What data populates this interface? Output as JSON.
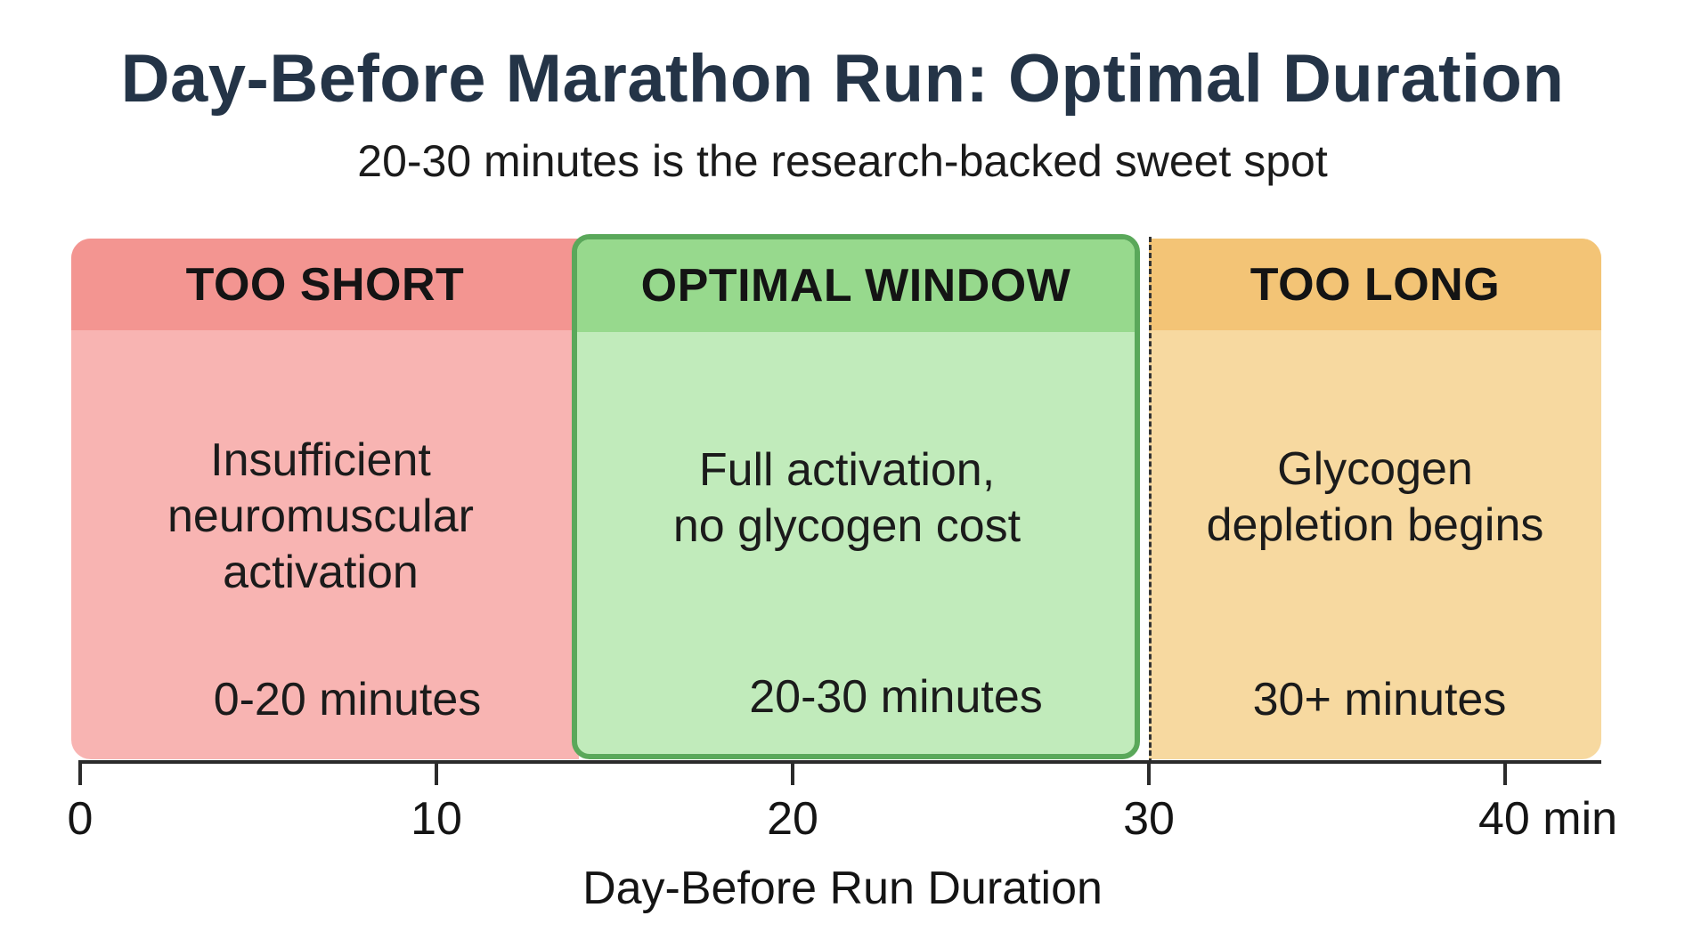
{
  "title": "Day-Before Marathon Run: Optimal Duration",
  "subtitle": "20-30 minutes is the research-backed sweet spot",
  "zones": [
    {
      "header": "TOO SHORT",
      "desc": [
        "Insufficient",
        "neuromuscular",
        "activation"
      ],
      "range": "0-20 minutes",
      "colors": {
        "header": "#f39591",
        "body": "#f8b4b2"
      }
    },
    {
      "header": "OPTIMAL WINDOW",
      "desc": [
        "Full activation,",
        "no glycogen cost"
      ],
      "range": "20-30 minutes",
      "colors": {
        "header": "#97d98d",
        "body": "#c1ebbb",
        "border": "#5aa85a"
      }
    },
    {
      "header": "TOO LONG",
      "desc": [
        "Glycogen",
        "depletion begins"
      ],
      "range": "30+ minutes",
      "colors": {
        "header": "#f3c476",
        "body": "#f7d9a0"
      }
    }
  ],
  "axis": {
    "ticks": [
      "0",
      "10",
      "20",
      "30",
      "40 min"
    ],
    "title": "Day-Before Run Duration"
  }
}
